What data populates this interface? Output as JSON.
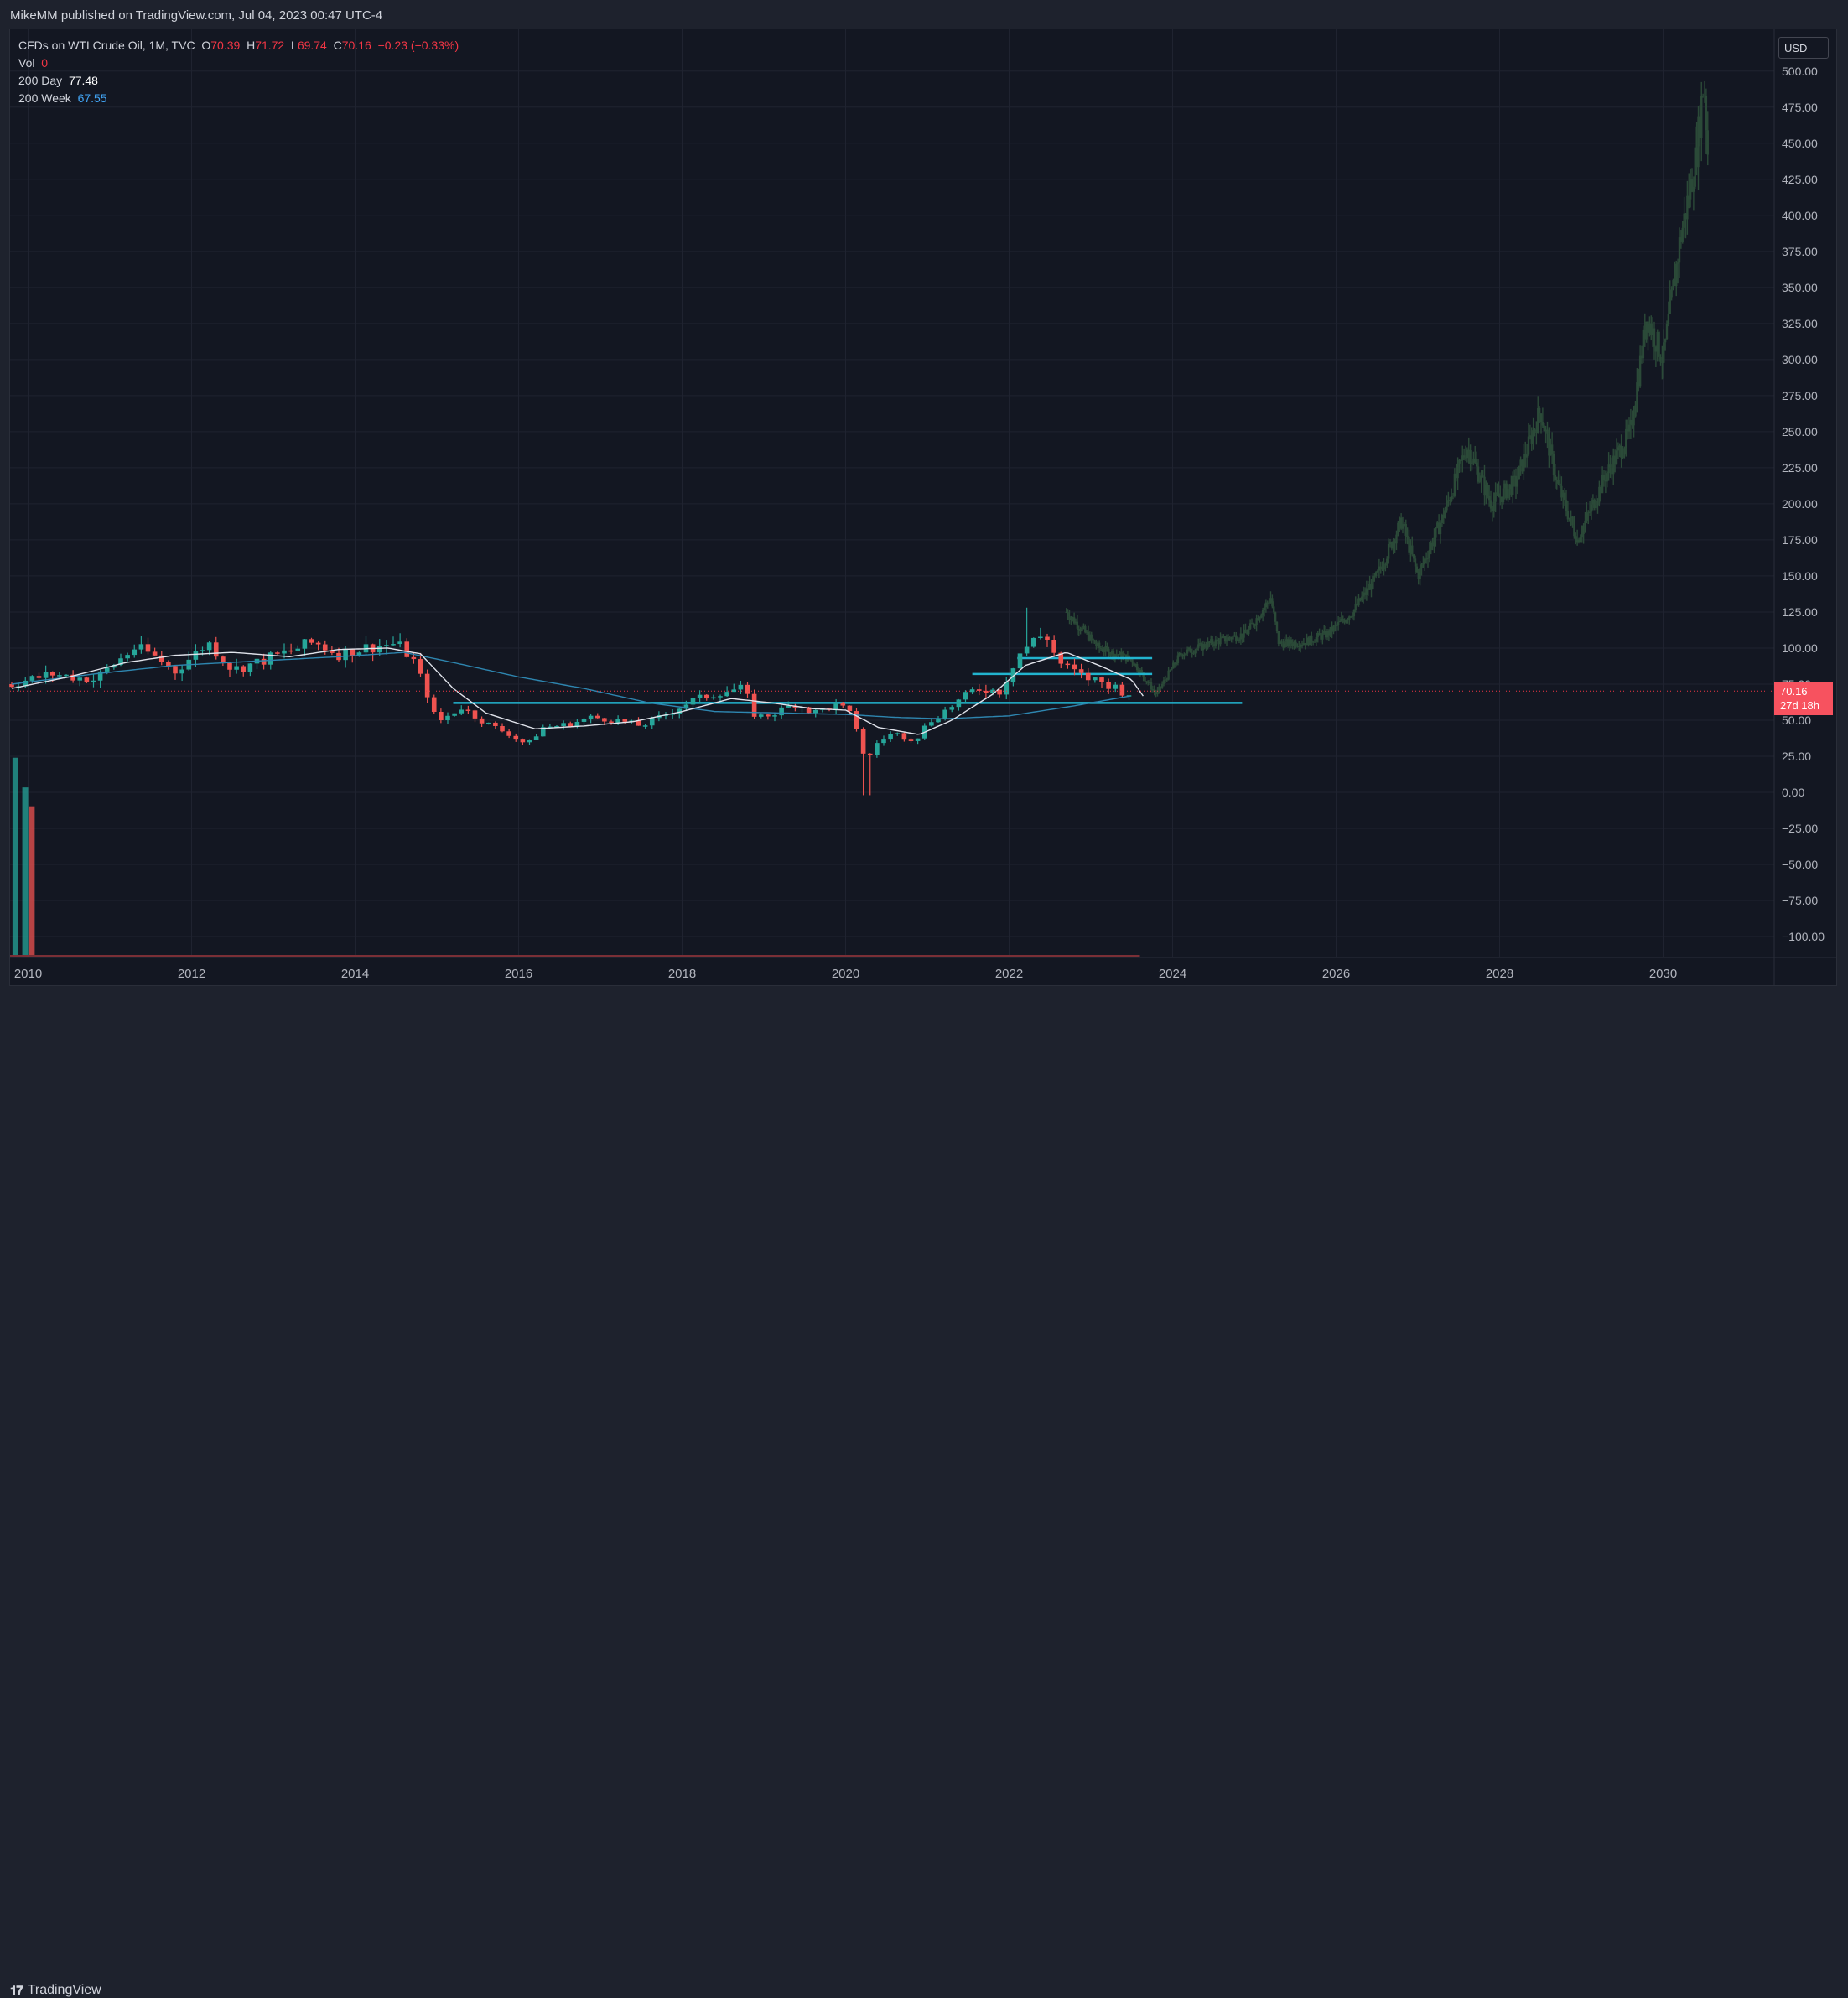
{
  "header": {
    "publisher": "MikeMM",
    "published_text": " published on TradingView.com, Jul 04, 2023 00:47 UTC-4"
  },
  "legend": {
    "symbol": "CFDs on WTI Crude Oil, 1M, TVC",
    "o_label": "O",
    "o_value": "70.39",
    "h_label": "H",
    "h_value": "71.72",
    "l_label": "L",
    "l_value": "69.74",
    "c_label": "C",
    "c_value": "70.16",
    "change": "−0.23 (−0.33%)",
    "vol_label": "Vol",
    "vol_value": "0",
    "ma1_label": "200 Day",
    "ma1_value": "77.48",
    "ma2_label": "200 Week",
    "ma2_value": "67.55"
  },
  "currency": "USD",
  "price_tag": {
    "price": "70.16",
    "countdown": "27d 18h"
  },
  "footer": {
    "brand": "TradingView",
    "logo_mark": "𝟏𝟕"
  },
  "colors": {
    "up": "#26a69a",
    "down": "#ef5350",
    "grid": "#1f2330",
    "ma_fast": "#e0e3eb",
    "ma_slow": "#2e86b0",
    "hline": "#22b4cf",
    "projection": "#2b4a38",
    "price_line": "#f23645"
  },
  "chart_data": {
    "type": "candlestick",
    "title": "CFDs on WTI Crude Oil, 1M, TVC",
    "ylabel": "USD",
    "ylim": [
      -110,
      520
    ],
    "y_ticks": [
      "−100.00",
      "−75.00",
      "−50.00",
      "−25.00",
      "0.00",
      "25.00",
      "50.00",
      "75.00",
      "100.00",
      "125.00",
      "150.00",
      "175.00",
      "200.00",
      "225.00",
      "250.00",
      "275.00",
      "300.00",
      "325.00",
      "350.00",
      "375.00",
      "400.00",
      "425.00",
      "450.00",
      "475.00",
      "500.00"
    ],
    "y_tick_values": [
      -100,
      -75,
      -50,
      -25,
      0,
      25,
      50,
      75,
      100,
      125,
      150,
      175,
      200,
      225,
      250,
      275,
      300,
      325,
      350,
      375,
      400,
      425,
      450,
      475,
      500
    ],
    "x_ticks": [
      "2010",
      "2012",
      "2014",
      "2016",
      "2018",
      "2020",
      "2022",
      "2024",
      "2026",
      "2028",
      "2030"
    ],
    "x_tick_years": [
      2010,
      2012,
      2014,
      2016,
      2018,
      2020,
      2022,
      2024,
      2026,
      2028,
      2030
    ],
    "xlim_years": [
      2009.8,
      2031.4
    ],
    "last_price": 70.16,
    "monthly_close_keypoints": [
      [
        2009.8,
        75
      ],
      [
        2010.3,
        82
      ],
      [
        2010.8,
        78
      ],
      [
        2011.3,
        100
      ],
      [
        2011.5,
        96
      ],
      [
        2011.8,
        84
      ],
      [
        2012.2,
        104
      ],
      [
        2012.5,
        85
      ],
      [
        2012.8,
        90
      ],
      [
        2013.1,
        96
      ],
      [
        2013.5,
        104
      ],
      [
        2013.8,
        96
      ],
      [
        2014.2,
        101
      ],
      [
        2014.5,
        103
      ],
      [
        2014.7,
        93
      ],
      [
        2014.9,
        66
      ],
      [
        2015.0,
        48
      ],
      [
        2015.3,
        59
      ],
      [
        2015.6,
        48
      ],
      [
        2015.9,
        40
      ],
      [
        2016.1,
        33
      ],
      [
        2016.3,
        45
      ],
      [
        2016.6,
        47
      ],
      [
        2016.9,
        52
      ],
      [
        2017.2,
        50
      ],
      [
        2017.5,
        46
      ],
      [
        2017.8,
        54
      ],
      [
        2018.1,
        63
      ],
      [
        2018.5,
        70
      ],
      [
        2018.75,
        72
      ],
      [
        2018.9,
        52
      ],
      [
        2019.1,
        54
      ],
      [
        2019.4,
        62
      ],
      [
        2019.6,
        55
      ],
      [
        2019.9,
        61
      ],
      [
        2020.1,
        52
      ],
      [
        2020.25,
        20
      ],
      [
        2020.4,
        36
      ],
      [
        2020.6,
        41
      ],
      [
        2020.85,
        36
      ],
      [
        2021.0,
        48
      ],
      [
        2021.3,
        60
      ],
      [
        2021.6,
        72
      ],
      [
        2021.9,
        70
      ],
      [
        2022.1,
        95
      ],
      [
        2022.3,
        105
      ],
      [
        2022.45,
        110
      ],
      [
        2022.6,
        90
      ],
      [
        2022.9,
        80
      ],
      [
        2023.1,
        77
      ],
      [
        2023.3,
        73
      ],
      [
        2023.45,
        68
      ],
      [
        2023.5,
        70.16
      ]
    ],
    "ma_fast_keypoints": [
      [
        2009.8,
        72
      ],
      [
        2010.5,
        80
      ],
      [
        2011.2,
        90
      ],
      [
        2011.8,
        95
      ],
      [
        2012.5,
        97
      ],
      [
        2013.2,
        94
      ],
      [
        2013.8,
        99
      ],
      [
        2014.4,
        100
      ],
      [
        2014.8,
        96
      ],
      [
        2015.2,
        72
      ],
      [
        2015.6,
        55
      ],
      [
        2016.2,
        44
      ],
      [
        2016.8,
        46
      ],
      [
        2017.4,
        49
      ],
      [
        2018.0,
        56
      ],
      [
        2018.6,
        65
      ],
      [
        2019.1,
        62
      ],
      [
        2019.6,
        58
      ],
      [
        2020.0,
        57
      ],
      [
        2020.4,
        45
      ],
      [
        2020.9,
        40
      ],
      [
        2021.3,
        50
      ],
      [
        2021.8,
        68
      ],
      [
        2022.2,
        88
      ],
      [
        2022.7,
        97
      ],
      [
        2023.1,
        88
      ],
      [
        2023.5,
        78
      ],
      [
        2023.65,
        66
      ]
    ],
    "ma_slow_keypoints": [
      [
        2009.8,
        75
      ],
      [
        2010.8,
        82
      ],
      [
        2011.8,
        88
      ],
      [
        2012.8,
        91
      ],
      [
        2013.8,
        94
      ],
      [
        2014.6,
        97
      ],
      [
        2015.2,
        90
      ],
      [
        2016.0,
        80
      ],
      [
        2016.8,
        72
      ],
      [
        2017.6,
        62
      ],
      [
        2018.4,
        56
      ],
      [
        2019.2,
        55
      ],
      [
        2020.0,
        54
      ],
      [
        2020.6,
        52
      ],
      [
        2021.2,
        51
      ],
      [
        2022.0,
        53
      ],
      [
        2022.8,
        60
      ],
      [
        2023.2,
        64
      ],
      [
        2023.5,
        67
      ]
    ],
    "horizontal_levels": [
      {
        "price": 62,
        "from": 2015.2,
        "to": 2024.85
      },
      {
        "price": 93,
        "from": 2022.1,
        "to": 2023.75
      },
      {
        "price": 82,
        "from": 2021.55,
        "to": 2023.75
      }
    ],
    "projection_keypoints": [
      [
        2022.7,
        125
      ],
      [
        2023.1,
        100
      ],
      [
        2023.5,
        92
      ],
      [
        2023.8,
        68
      ],
      [
        2024.1,
        96
      ],
      [
        2024.5,
        104
      ],
      [
        2024.9,
        110
      ],
      [
        2025.2,
        135
      ],
      [
        2025.3,
        103
      ],
      [
        2025.6,
        104
      ],
      [
        2025.9,
        110
      ],
      [
        2026.2,
        125
      ],
      [
        2026.5,
        150
      ],
      [
        2026.8,
        188
      ],
      [
        2027.0,
        150
      ],
      [
        2027.3,
        190
      ],
      [
        2027.6,
        240
      ],
      [
        2027.9,
        200
      ],
      [
        2028.2,
        215
      ],
      [
        2028.5,
        265
      ],
      [
        2028.7,
        215
      ],
      [
        2028.95,
        175
      ],
      [
        2029.3,
        220
      ],
      [
        2029.6,
        250
      ],
      [
        2029.8,
        330
      ],
      [
        2030.0,
        300
      ],
      [
        2030.2,
        380
      ],
      [
        2030.4,
        440
      ],
      [
        2030.5,
        495
      ],
      [
        2030.55,
        440
      ]
    ],
    "volume_bars": [
      {
        "year": 2009.85,
        "value": 0.74,
        "color": "up"
      },
      {
        "year": 2009.97,
        "value": 0.63,
        "color": "up"
      },
      {
        "year": 2010.05,
        "value": 0.56,
        "color": "down"
      }
    ]
  }
}
